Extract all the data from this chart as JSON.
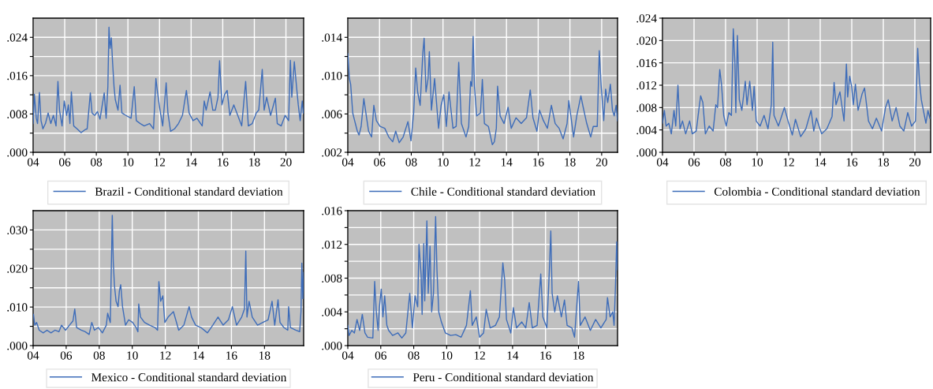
{
  "chart_data": [
    {
      "type": "line",
      "grid": true,
      "legend": "bottom",
      "xlim": [
        2004,
        2021.12
      ],
      "ylim": [
        0,
        0.028
      ],
      "xticks": [
        {
          "value": 2004,
          "label": "04"
        },
        {
          "value": 2006,
          "label": "06"
        },
        {
          "value": 2008,
          "label": "08"
        },
        {
          "value": 2010,
          "label": "10"
        },
        {
          "value": 2012,
          "label": "12"
        },
        {
          "value": 2014,
          "label": "14"
        },
        {
          "value": 2016,
          "label": "16"
        },
        {
          "value": 2018,
          "label": "18"
        },
        {
          "value": 2020,
          "label": "20"
        }
      ],
      "yticks": [
        {
          "value": 0,
          "label": ".000"
        },
        {
          "value": 0.004,
          "label": null
        },
        {
          "value": 0.008,
          "label": ".008"
        },
        {
          "value": 0.012,
          "label": null
        },
        {
          "value": 0.016,
          "label": ".016"
        },
        {
          "value": 0.02,
          "label": null
        },
        {
          "value": 0.024,
          "label": ".024"
        }
      ],
      "x": [
        2004.0,
        2004.08,
        2004.2,
        2004.28,
        2004.4,
        2004.5,
        2004.62,
        2004.78,
        2004.95,
        2005.12,
        2005.28,
        2005.45,
        2005.57,
        2005.67,
        2005.83,
        2005.97,
        2006.12,
        2006.23,
        2006.33,
        2006.42,
        2006.57,
        2006.78,
        2007.03,
        2007.28,
        2007.42,
        2007.62,
        2007.73,
        2007.9,
        2008.07,
        2008.23,
        2008.5,
        2008.62,
        2008.73,
        2008.8,
        2008.87,
        2008.95,
        2009.03,
        2009.12,
        2009.2,
        2009.37,
        2009.5,
        2009.62,
        2009.87,
        2010.2,
        2010.4,
        2010.53,
        2010.78,
        2011.03,
        2011.37,
        2011.62,
        2011.77,
        2011.87,
        2012.03,
        2012.2,
        2012.42,
        2012.53,
        2012.7,
        2012.95,
        2013.2,
        2013.45,
        2013.7,
        2013.87,
        2014.12,
        2014.37,
        2014.7,
        2014.83,
        2014.95,
        2015.2,
        2015.37,
        2015.53,
        2015.7,
        2015.8,
        2015.95,
        2016.12,
        2016.28,
        2016.45,
        2016.7,
        2016.95,
        2017.2,
        2017.45,
        2017.62,
        2017.87,
        2018.12,
        2018.28,
        2018.5,
        2018.62,
        2018.78,
        2019.03,
        2019.33,
        2019.45,
        2019.7,
        2019.95,
        2020.17,
        2020.28,
        2020.37,
        2020.53,
        2020.67,
        2020.78,
        2020.9,
        2021.03,
        2021.1
      ],
      "series": [
        {
          "name": "Brazil - Conditional standard deviation",
          "color": "#3d6cb9",
          "values": [
            0.006,
            0.0121,
            0.0071,
            0.006,
            0.0125,
            0.0066,
            0.0049,
            0.006,
            0.0082,
            0.006,
            0.0077,
            0.0055,
            0.0148,
            0.0088,
            0.0055,
            0.0107,
            0.0077,
            0.0099,
            0.006,
            0.0126,
            0.0055,
            0.0049,
            0.0041,
            0.0047,
            0.0049,
            0.0124,
            0.0082,
            0.0077,
            0.0085,
            0.0069,
            0.0124,
            0.0071,
            0.0137,
            0.0261,
            0.0217,
            0.0239,
            0.0187,
            0.0137,
            0.011,
            0.0088,
            0.014,
            0.0082,
            0.0077,
            0.0071,
            0.0137,
            0.0066,
            0.006,
            0.0055,
            0.006,
            0.0049,
            0.0154,
            0.0126,
            0.0088,
            0.0055,
            0.0145,
            0.0082,
            0.0044,
            0.0049,
            0.006,
            0.0077,
            0.0129,
            0.0082,
            0.0066,
            0.0071,
            0.0055,
            0.0107,
            0.0088,
            0.0126,
            0.0088,
            0.0088,
            0.0115,
            0.0191,
            0.0099,
            0.0121,
            0.0129,
            0.0077,
            0.0099,
            0.0077,
            0.0055,
            0.0148,
            0.0055,
            0.006,
            0.0082,
            0.0088,
            0.0173,
            0.0088,
            0.0115,
            0.0077,
            0.0113,
            0.006,
            0.0055,
            0.0077,
            0.0066,
            0.0192,
            0.0115,
            0.0189,
            0.0137,
            0.0099,
            0.0066,
            0.0107,
            0.0082
          ]
        }
      ]
    },
    {
      "type": "line",
      "grid": true,
      "legend": "bottom",
      "xlim": [
        2004,
        2021.0
      ],
      "ylim": [
        0.002,
        0.016
      ],
      "xticks": [
        {
          "value": 2004,
          "label": "04"
        },
        {
          "value": 2006,
          "label": "06"
        },
        {
          "value": 2008,
          "label": "08"
        },
        {
          "value": 2010,
          "label": "10"
        },
        {
          "value": 2012,
          "label": "12"
        },
        {
          "value": 2014,
          "label": "14"
        },
        {
          "value": 2016,
          "label": "16"
        },
        {
          "value": 2018,
          "label": "18"
        },
        {
          "value": 2020,
          "label": "20"
        }
      ],
      "yticks": [
        {
          "value": 0.002,
          "label": ".002"
        },
        {
          "value": 0.004,
          "label": null
        },
        {
          "value": 0.006,
          "label": ".006"
        },
        {
          "value": 0.008,
          "label": null
        },
        {
          "value": 0.01,
          "label": ".010"
        },
        {
          "value": 0.012,
          "label": null
        },
        {
          "value": 0.014,
          "label": ".014"
        }
      ],
      "x": [
        2004.0,
        2004.1,
        2004.18,
        2004.31,
        2004.43,
        2004.6,
        2004.71,
        2004.84,
        2005.01,
        2005.14,
        2005.31,
        2005.5,
        2005.64,
        2005.8,
        2006.03,
        2006.33,
        2006.58,
        2006.83,
        2007.02,
        2007.24,
        2007.49,
        2007.79,
        2007.98,
        2008.15,
        2008.28,
        2008.4,
        2008.56,
        2008.73,
        2008.81,
        2008.93,
        2009.06,
        2009.14,
        2009.27,
        2009.47,
        2009.72,
        2009.88,
        2010.05,
        2010.21,
        2010.38,
        2010.63,
        2010.83,
        2010.99,
        2011.16,
        2011.45,
        2011.62,
        2011.74,
        2011.82,
        2011.9,
        2011.98,
        2012.12,
        2012.36,
        2012.48,
        2012.61,
        2012.86,
        2013.11,
        2013.24,
        2013.36,
        2013.44,
        2013.6,
        2013.85,
        2014.1,
        2014.3,
        2014.6,
        2014.93,
        2015.26,
        2015.5,
        2015.67,
        2015.92,
        2016.08,
        2016.33,
        2016.58,
        2016.83,
        2017.07,
        2017.32,
        2017.57,
        2017.82,
        2017.93,
        2018.23,
        2018.43,
        2018.69,
        2018.81,
        2019.06,
        2019.31,
        2019.47,
        2019.72,
        2019.85,
        2019.97,
        2020.13,
        2020.25,
        2020.38,
        2020.55,
        2020.68,
        2020.79,
        2020.91,
        2021.0
      ],
      "series": [
        {
          "name": "Chile - Conditional standard deviation",
          "color": "#3d6cb9",
          "values": [
            0.0123,
            0.0097,
            0.0091,
            0.0061,
            0.0053,
            0.0042,
            0.0038,
            0.0047,
            0.0076,
            0.0061,
            0.0042,
            0.0036,
            0.0069,
            0.0053,
            0.0047,
            0.0045,
            0.0036,
            0.0031,
            0.0042,
            0.003,
            0.0036,
            0.0052,
            0.0032,
            0.0061,
            0.0108,
            0.0083,
            0.0069,
            0.0124,
            0.0139,
            0.0083,
            0.0097,
            0.0125,
            0.0064,
            0.0097,
            0.0045,
            0.0069,
            0.008,
            0.0047,
            0.0083,
            0.0045,
            0.0047,
            0.0114,
            0.005,
            0.0036,
            0.0047,
            0.0094,
            0.0089,
            0.0141,
            0.0089,
            0.0058,
            0.0061,
            0.0096,
            0.005,
            0.0047,
            0.0028,
            0.0031,
            0.0045,
            0.0089,
            0.0058,
            0.005,
            0.0067,
            0.0045,
            0.0056,
            0.005,
            0.0056,
            0.0085,
            0.0056,
            0.0042,
            0.0064,
            0.0053,
            0.0045,
            0.0069,
            0.005,
            0.0045,
            0.0034,
            0.005,
            0.0074,
            0.0036,
            0.0058,
            0.0079,
            0.0069,
            0.005,
            0.0036,
            0.0047,
            0.0047,
            0.0126,
            0.0089,
            0.0053,
            0.0086,
            0.0072,
            0.0091,
            0.0064,
            0.0058,
            0.0069,
            0.0053
          ]
        }
      ]
    },
    {
      "type": "line",
      "grid": true,
      "legend": "bottom",
      "xlim": [
        2004,
        2021.0
      ],
      "ylim": [
        0,
        0.024
      ],
      "xticks": [
        {
          "value": 2004,
          "label": "04"
        },
        {
          "value": 2006,
          "label": "06"
        },
        {
          "value": 2008,
          "label": "08"
        },
        {
          "value": 2010,
          "label": "10"
        },
        {
          "value": 2012,
          "label": "12"
        },
        {
          "value": 2014,
          "label": "14"
        },
        {
          "value": 2016,
          "label": "16"
        },
        {
          "value": 2018,
          "label": "18"
        },
        {
          "value": 2020,
          "label": "20"
        }
      ],
      "yticks": [
        {
          "value": 0,
          "label": ".000"
        },
        {
          "value": 0.004,
          "label": ".004"
        },
        {
          "value": 0.008,
          "label": ".008"
        },
        {
          "value": 0.012,
          "label": ".012"
        },
        {
          "value": 0.016,
          "label": ".016"
        },
        {
          "value": 0.02,
          "label": ".020"
        },
        {
          "value": 0.024,
          "label": ".024"
        }
      ],
      "x": [
        2004.0,
        2004.12,
        2004.23,
        2004.4,
        2004.56,
        2004.73,
        2004.84,
        2004.98,
        2005.11,
        2005.27,
        2005.47,
        2005.72,
        2005.89,
        2006.14,
        2006.3,
        2006.42,
        2006.56,
        2006.72,
        2006.96,
        2007.21,
        2007.38,
        2007.49,
        2007.63,
        2007.74,
        2007.88,
        2008.04,
        2008.21,
        2008.37,
        2008.49,
        2008.59,
        2008.65,
        2008.75,
        2008.87,
        2009.03,
        2009.25,
        2009.36,
        2009.53,
        2009.7,
        2009.81,
        2009.94,
        2010.19,
        2010.44,
        2010.69,
        2010.9,
        2010.99,
        2011.07,
        2011.35,
        2011.73,
        2011.96,
        2012.23,
        2012.43,
        2012.76,
        2013.09,
        2013.42,
        2013.59,
        2013.76,
        2014.09,
        2014.42,
        2014.75,
        2014.88,
        2015.0,
        2015.25,
        2015.51,
        2015.66,
        2015.74,
        2015.87,
        2015.99,
        2016.1,
        2016.23,
        2016.4,
        2016.65,
        2016.81,
        2017.06,
        2017.31,
        2017.56,
        2017.89,
        2018.14,
        2018.31,
        2018.56,
        2018.81,
        2019.05,
        2019.3,
        2019.55,
        2019.79,
        2020.04,
        2020.18,
        2020.29,
        2020.41,
        2020.54,
        2020.7,
        2020.83,
        2020.95
      ],
      "series": [
        {
          "name": "Colombia - Conditional standard deviation",
          "color": "#3d6cb9",
          "values": [
            0.0052,
            0.0075,
            0.0047,
            0.0052,
            0.0033,
            0.0075,
            0.0047,
            0.012,
            0.0042,
            0.0056,
            0.0033,
            0.0056,
            0.0033,
            0.0038,
            0.0075,
            0.0101,
            0.0089,
            0.0033,
            0.0047,
            0.0038,
            0.0085,
            0.008,
            0.0148,
            0.0122,
            0.0066,
            0.0047,
            0.0071,
            0.0066,
            0.0221,
            0.016,
            0.0071,
            0.0209,
            0.0094,
            0.0075,
            0.0127,
            0.0085,
            0.0127,
            0.0075,
            0.0118,
            0.0056,
            0.0047,
            0.0066,
            0.0042,
            0.0085,
            0.0197,
            0.0066,
            0.0047,
            0.008,
            0.0056,
            0.0031,
            0.0059,
            0.0028,
            0.0042,
            0.0075,
            0.0038,
            0.0061,
            0.0033,
            0.0042,
            0.0064,
            0.0125,
            0.0085,
            0.0108,
            0.0056,
            0.0158,
            0.0099,
            0.0136,
            0.0118,
            0.0085,
            0.0122,
            0.0075,
            0.0104,
            0.0115,
            0.0056,
            0.0042,
            0.0061,
            0.0038,
            0.008,
            0.0094,
            0.0056,
            0.008,
            0.0047,
            0.0038,
            0.0071,
            0.0047,
            0.0056,
            0.0186,
            0.0127,
            0.0094,
            0.0075,
            0.0052,
            0.0075,
            0.0061
          ]
        }
      ]
    },
    {
      "type": "line",
      "grid": true,
      "legend": "bottom",
      "xlim": [
        2004,
        2020.37
      ],
      "ylim": [
        0,
        0.035
      ],
      "xticks": [
        {
          "value": 2004,
          "label": "04"
        },
        {
          "value": 2006,
          "label": "06"
        },
        {
          "value": 2008,
          "label": "08"
        },
        {
          "value": 2010,
          "label": "10"
        },
        {
          "value": 2012,
          "label": "12"
        },
        {
          "value": 2014,
          "label": "14"
        },
        {
          "value": 2016,
          "label": "16"
        },
        {
          "value": 2018,
          "label": "18"
        }
      ],
      "yticks": [
        {
          "value": 0,
          "label": ".000"
        },
        {
          "value": 0.005,
          "label": null
        },
        {
          "value": 0.01,
          "label": ".010"
        },
        {
          "value": 0.015,
          "label": null
        },
        {
          "value": 0.02,
          "label": ".020"
        },
        {
          "value": 0.025,
          "label": null
        },
        {
          "value": 0.03,
          "label": ".030"
        }
      ],
      "x": [
        2004.02,
        2004.1,
        2004.21,
        2004.37,
        2004.61,
        2004.84,
        2005.08,
        2005.32,
        2005.56,
        2005.72,
        2005.96,
        2006.2,
        2006.41,
        2006.52,
        2006.63,
        2006.91,
        2007.15,
        2007.39,
        2007.55,
        2007.71,
        2007.95,
        2008.19,
        2008.43,
        2008.51,
        2008.67,
        2008.79,
        2008.85,
        2008.92,
        2009.02,
        2009.14,
        2009.22,
        2009.3,
        2009.41,
        2009.59,
        2009.78,
        2010.02,
        2010.23,
        2010.34,
        2010.39,
        2010.5,
        2010.74,
        2011.05,
        2011.37,
        2011.53,
        2011.61,
        2011.72,
        2011.85,
        2011.97,
        2012.17,
        2012.49,
        2012.81,
        2013.12,
        2013.44,
        2013.59,
        2013.83,
        2014.15,
        2014.55,
        2014.87,
        2015.19,
        2015.5,
        2015.82,
        2016.06,
        2016.31,
        2016.62,
        2016.79,
        2016.87,
        2016.94,
        2017.07,
        2017.26,
        2017.58,
        2017.9,
        2018.22,
        2018.46,
        2018.62,
        2018.82,
        2018.94,
        2019.17,
        2019.41,
        2019.46,
        2019.57,
        2019.89,
        2020.13,
        2020.21,
        2020.26,
        2020.32,
        2020.37
      ],
      "series": [
        {
          "name": "Mexico - Conditional standard deviation",
          "color": "#3d6cb9",
          "values": [
            0.0081,
            0.0053,
            0.006,
            0.004,
            0.0033,
            0.004,
            0.0033,
            0.004,
            0.0036,
            0.0053,
            0.004,
            0.0053,
            0.0064,
            0.0095,
            0.0047,
            0.004,
            0.0036,
            0.0029,
            0.006,
            0.004,
            0.0047,
            0.0033,
            0.0053,
            0.0084,
            0.006,
            0.0338,
            0.0218,
            0.0156,
            0.0115,
            0.0101,
            0.0142,
            0.0158,
            0.0101,
            0.0053,
            0.0067,
            0.006,
            0.0047,
            0.0036,
            0.0108,
            0.0074,
            0.006,
            0.0053,
            0.0047,
            0.004,
            0.0166,
            0.0115,
            0.0129,
            0.006,
            0.0074,
            0.0088,
            0.004,
            0.0053,
            0.0101,
            0.0074,
            0.0053,
            0.0047,
            0.0033,
            0.0053,
            0.0074,
            0.0053,
            0.0067,
            0.0101,
            0.0053,
            0.0074,
            0.0095,
            0.0245,
            0.0074,
            0.0115,
            0.0074,
            0.0053,
            0.006,
            0.0067,
            0.0115,
            0.0053,
            0.0119,
            0.006,
            0.0047,
            0.004,
            0.0101,
            0.0047,
            0.004,
            0.0036,
            0.0088,
            0.0214,
            0.0122,
            0.019
          ]
        }
      ]
    },
    {
      "type": "line",
      "grid": true,
      "legend": "bottom",
      "xlim": [
        2004,
        2020.37
      ],
      "ylim": [
        0,
        0.016
      ],
      "xticks": [
        {
          "value": 2004,
          "label": "04"
        },
        {
          "value": 2006,
          "label": "06"
        },
        {
          "value": 2008,
          "label": "08"
        },
        {
          "value": 2010,
          "label": "10"
        },
        {
          "value": 2012,
          "label": "12"
        },
        {
          "value": 2014,
          "label": "14"
        },
        {
          "value": 2016,
          "label": "16"
        },
        {
          "value": 2018,
          "label": "18"
        }
      ],
      "yticks": [
        {
          "value": 0,
          "label": ".000"
        },
        {
          "value": 0.002,
          "label": null
        },
        {
          "value": 0.004,
          "label": ".004"
        },
        {
          "value": 0.006,
          "label": null
        },
        {
          "value": 0.008,
          "label": ".008"
        },
        {
          "value": 0.01,
          "label": null
        },
        {
          "value": 0.012,
          "label": ".012"
        },
        {
          "value": 0.014,
          "label": null
        },
        {
          "value": 0.016,
          "label": ".016"
        }
      ],
      "x": [
        2004.0,
        2004.08,
        2004.24,
        2004.4,
        2004.56,
        2004.72,
        2004.88,
        2005.04,
        2005.2,
        2005.52,
        2005.63,
        2005.73,
        2005.84,
        2005.92,
        2006.03,
        2006.13,
        2006.24,
        2006.37,
        2006.48,
        2006.72,
        2007.04,
        2007.28,
        2007.52,
        2007.76,
        2007.92,
        2008.08,
        2008.24,
        2008.32,
        2008.45,
        2008.51,
        2008.61,
        2008.67,
        2008.8,
        2008.88,
        2008.99,
        2009.09,
        2009.2,
        2009.33,
        2009.41,
        2009.52,
        2009.68,
        2009.92,
        2010.24,
        2010.56,
        2010.88,
        2011.2,
        2011.33,
        2011.44,
        2011.55,
        2011.8,
        2012.0,
        2012.24,
        2012.4,
        2012.64,
        2012.96,
        2013.2,
        2013.41,
        2013.52,
        2013.63,
        2013.89,
        2014.05,
        2014.24,
        2014.56,
        2014.8,
        2015.01,
        2015.2,
        2015.49,
        2015.71,
        2015.84,
        2016.08,
        2016.24,
        2016.32,
        2016.4,
        2016.56,
        2016.72,
        2016.96,
        2017.15,
        2017.31,
        2017.6,
        2017.76,
        2018.0,
        2018.11,
        2018.4,
        2018.72,
        2019.04,
        2019.36,
        2019.68,
        2019.76,
        2019.92,
        2020.08,
        2020.16,
        2020.24,
        2020.32,
        2020.37
      ],
      "series": [
        {
          "name": "Peru - Conditional standard deviation",
          "color": "#3d6cb9",
          "values": [
            0.0024,
            0.0012,
            0.0018,
            0.0015,
            0.0031,
            0.0018,
            0.0037,
            0.0015,
            0.001,
            0.0009,
            0.0076,
            0.004,
            0.0018,
            0.0046,
            0.0067,
            0.0034,
            0.0059,
            0.0024,
            0.0018,
            0.0012,
            0.0015,
            0.0009,
            0.0015,
            0.0062,
            0.0021,
            0.0059,
            0.0046,
            0.012,
            0.0084,
            0.0037,
            0.0121,
            0.0053,
            0.0148,
            0.0062,
            0.0118,
            0.004,
            0.0062,
            0.0153,
            0.009,
            0.004,
            0.0028,
            0.0015,
            0.0012,
            0.0013,
            0.001,
            0.0024,
            0.0046,
            0.0065,
            0.0024,
            0.0034,
            0.001,
            0.0015,
            0.0043,
            0.0021,
            0.0024,
            0.0034,
            0.0098,
            0.0078,
            0.0031,
            0.0015,
            0.0045,
            0.0021,
            0.0028,
            0.0021,
            0.0051,
            0.0021,
            0.0024,
            0.0085,
            0.0034,
            0.0021,
            0.0093,
            0.0136,
            0.0062,
            0.004,
            0.0059,
            0.0034,
            0.0054,
            0.0024,
            0.0021,
            0.001,
            0.0076,
            0.0024,
            0.0034,
            0.0018,
            0.0031,
            0.0021,
            0.0031,
            0.0057,
            0.0034,
            0.004,
            0.0024,
            0.0068,
            0.0123,
            0.009
          ]
        }
      ]
    }
  ]
}
